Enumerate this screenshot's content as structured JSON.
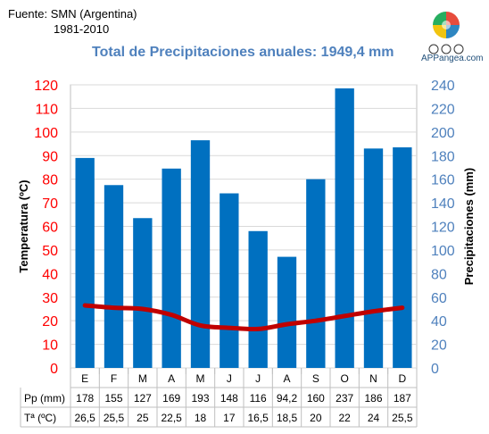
{
  "header": {
    "source": "Fuente: SMN (Argentina)",
    "period": "1981-2010",
    "title": "Total de Precipitaciones anuales: 1949,4 mm",
    "brand": "APPangea.com"
  },
  "colors": {
    "bars": "#0070c0",
    "line": "#c00000",
    "left_axis": "#ff0000",
    "right_axis": "#4f81bd",
    "title": "#4f81bd"
  },
  "chart_data": {
    "type": "bar",
    "categories": [
      "E",
      "F",
      "M",
      "A",
      "M",
      "J",
      "J",
      "A",
      "S",
      "O",
      "N",
      "D"
    ],
    "series": [
      {
        "name": "Pp (mm)",
        "type": "bar",
        "axis": "right",
        "values": [
          178,
          155,
          127,
          169,
          193,
          148,
          116,
          94.2,
          160,
          237,
          186,
          187
        ]
      },
      {
        "name": "Tª (ºC)",
        "type": "line",
        "axis": "left",
        "values": [
          26.5,
          25.5,
          25,
          22.5,
          18,
          17,
          16.5,
          18.5,
          20,
          22,
          24,
          25.5
        ]
      }
    ],
    "table": {
      "row_labels": [
        "Pp (mm)",
        "Tª (ºC)"
      ],
      "rows": [
        [
          "178",
          "155",
          "127",
          "169",
          "193",
          "148",
          "116",
          "94,2",
          "160",
          "237",
          "186",
          "187"
        ],
        [
          "26,5",
          "25,5",
          "25",
          "22,5",
          "18",
          "17",
          "16,5",
          "18,5",
          "20",
          "22",
          "24",
          "25,5"
        ]
      ]
    },
    "left_axis": {
      "label": "Temperatura (ºC)",
      "min": 0,
      "max": 120,
      "step": 10
    },
    "right_axis": {
      "label": "Precipitaciones (mm)",
      "min": 0,
      "max": 240,
      "step": 20
    },
    "grid": true
  }
}
